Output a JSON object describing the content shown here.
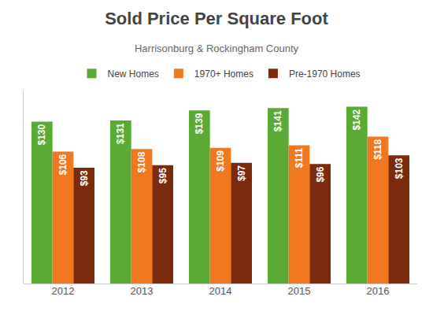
{
  "chart_data": {
    "type": "bar",
    "title": "Sold Price Per Square Foot",
    "subtitle": "Harrisonburg & Rockingham County",
    "categories": [
      "2012",
      "2013",
      "2014",
      "2015",
      "2016"
    ],
    "series": [
      {
        "name": "New Homes",
        "color": "#5baa36",
        "values": [
          130,
          131,
          139,
          141,
          142
        ],
        "value_labels": [
          "$130",
          "$131",
          "$139",
          "$141",
          "$142"
        ]
      },
      {
        "name": "1970+ Homes",
        "color": "#f07820",
        "values": [
          106,
          108,
          109,
          111,
          118
        ],
        "value_labels": [
          "$106",
          "$108",
          "$109",
          "$111",
          "$118"
        ]
      },
      {
        "name": "Pre-1970 Homes",
        "color": "#7b2a0e",
        "values": [
          93,
          95,
          97,
          96,
          103
        ],
        "value_labels": [
          "$93",
          "$95",
          "$97",
          "$96",
          "$103"
        ]
      }
    ],
    "ylim": [
      0,
      155
    ],
    "data_labels": true,
    "tick_labels": "x",
    "grid": false,
    "legend": "top"
  }
}
